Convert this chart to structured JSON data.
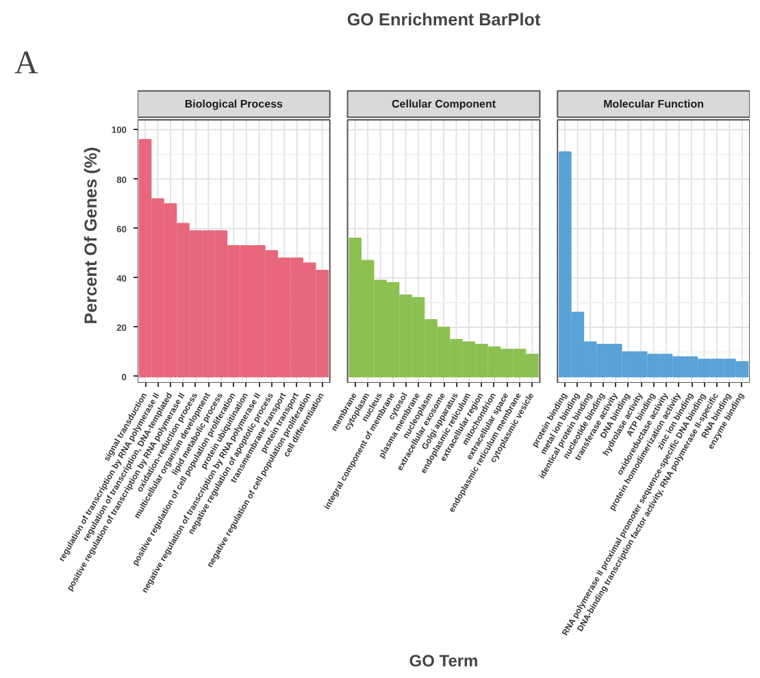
{
  "chart_data": [
    {
      "type": "bar",
      "title": "Biological Process",
      "ylabel": "Percent Of Genes (%)",
      "annotations": [
        "GO Enrichment BarPlot",
        "A"
      ],
      "ylim": [
        -2.5,
        104
      ],
      "yticks": [
        0,
        20,
        40,
        60,
        80,
        100
      ],
      "grid": true,
      "color": "#e8677c",
      "categories": [
        "signal transduction",
        "regulation of transcription by RNA polymerase II",
        "regulation of transcription, DNA-templated",
        "positive regulation of transcription by RNA polymerase II",
        "oxidation-reduction process",
        "multicellular organism development",
        "lipid metabolic process",
        "positive regulation of cell population proliferation",
        "protein ubiquitination",
        "negative regulation of transcription by RNA polymerase II",
        "negative regulation of apoptotic process",
        "transmembrane transport",
        "protein transport",
        "negative regulation of cell population proliferation",
        "cell differentiation"
      ],
      "values": [
        96,
        72,
        70,
        62,
        59,
        59,
        59,
        53,
        53,
        53,
        51,
        48,
        48,
        46,
        43
      ]
    },
    {
      "type": "bar",
      "title": "Cellular Component",
      "xlabel": "GO Term",
      "ylim": [
        -2.5,
        104
      ],
      "yticks": [
        0,
        20,
        40,
        60,
        80,
        100
      ],
      "grid": true,
      "tick_labels": "x",
      "color": "#8cc152",
      "categories": [
        "membrane",
        "cytoplasm",
        "nucleus",
        "integral component of membrane",
        "cytosol",
        "plasma membrane",
        "nucleoplasm",
        "extracellular exosome",
        "Golgi apparatus",
        "endoplasmic reticulum",
        "extracellular region",
        "mitochondrion",
        "extracellular space",
        "endoplasmic reticulum membrane",
        "cytoplasmic vesicle"
      ],
      "values": [
        56,
        47,
        39,
        38,
        33,
        32,
        23,
        20,
        15,
        14,
        13,
        12,
        11,
        11,
        9
      ]
    },
    {
      "type": "bar",
      "title": "Molecular Function",
      "ylim": [
        -2.5,
        104
      ],
      "yticks": [
        0,
        20,
        40,
        60,
        80,
        100
      ],
      "grid": true,
      "tick_labels": "x",
      "color": "#5aa2d8",
      "categories": [
        "protein binding",
        "metal ion binding",
        "identical protein binding",
        "nucleotide binding",
        "transferase activity",
        "DNA binding",
        "hydrolase activity",
        "ATP binding",
        "oxidoreductase activity",
        "protein homodimerization activity",
        "zinc ion binding",
        "RNA polymerase II proximal promoter sequence-specific DNA binding",
        "DNA-binding transcription factor activity, RNA polymerase II-specific",
        "RNA binding",
        "enzyme binding"
      ],
      "values": [
        91,
        26,
        14,
        13,
        13,
        10,
        10,
        9,
        9,
        8,
        8,
        7,
        7,
        7,
        6
      ]
    }
  ]
}
